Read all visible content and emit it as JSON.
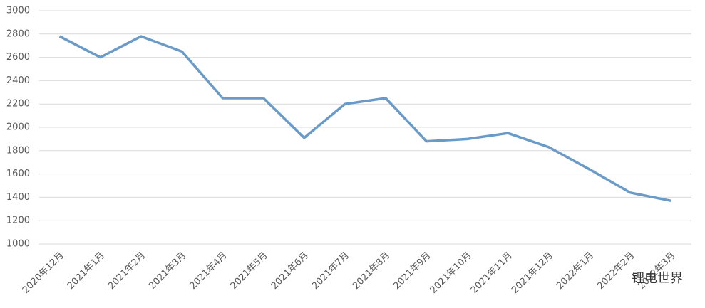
{
  "chart_data": {
    "type": "line",
    "categories": [
      "2020年12月",
      "2021年1月",
      "2021年2月",
      "2021年3月",
      "2021年4月",
      "2021年5月",
      "2021年6月",
      "2021年7月",
      "2021年8月",
      "2021年9月",
      "2021年10月",
      "2021年11月",
      "2021年12月",
      "2022年1月",
      "2022年2月",
      "2022年3月"
    ],
    "series": [
      {
        "name": null,
        "color": "#6a9bc8",
        "values": [
          2780,
          2600,
          2780,
          2650,
          2250,
          2250,
          1910,
          2200,
          2250,
          1880,
          1900,
          1950,
          1830,
          1640,
          1440,
          1370
        ]
      }
    ],
    "ylim": [
      1000,
      3000
    ],
    "yticks": [
      1000,
      1200,
      1400,
      1600,
      1800,
      2000,
      2200,
      2400,
      2600,
      2800,
      3000
    ],
    "grid": true,
    "watermark": "锂电世界"
  }
}
